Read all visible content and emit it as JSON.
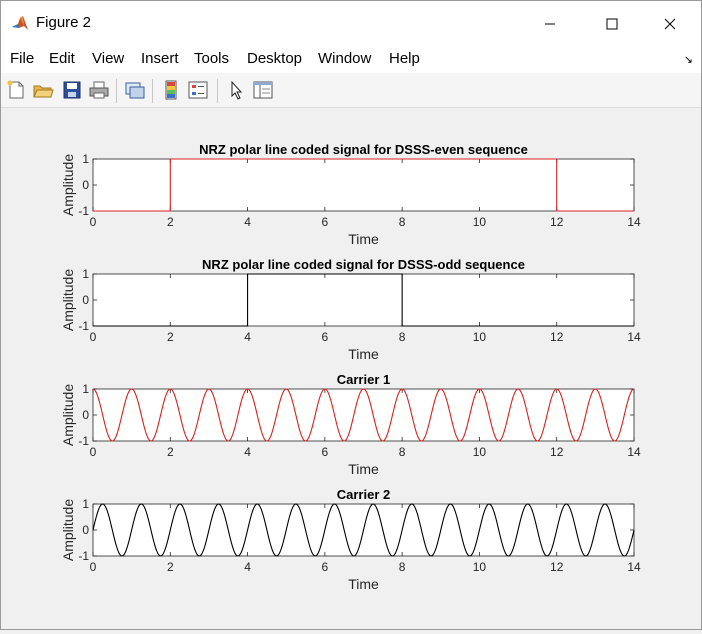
{
  "window": {
    "title": "Figure 2",
    "icon": "matlab-logo-icon"
  },
  "menu": [
    "File",
    "Edit",
    "View",
    "Insert",
    "Tools",
    "Desktop",
    "Window",
    "Help"
  ],
  "toolbar_icons": [
    "new-figure-icon",
    "open-file-icon",
    "save-icon",
    "print-icon",
    "link-plot-icon",
    "insert-colorbar-icon",
    "insert-legend-icon",
    "edit-plot-icon",
    "property-inspector-icon"
  ],
  "chart_data": [
    {
      "type": "line",
      "title": "NRZ polar line coded signal for DSSS-even sequence",
      "xlabel": "Time",
      "ylabel": "Amplitude",
      "xlim": [
        0,
        14
      ],
      "ylim": [
        -1,
        1
      ],
      "xticks": [
        "0",
        "2",
        "4",
        "6",
        "8",
        "10",
        "12",
        "14"
      ],
      "yticks": [
        "-1",
        "0",
        "1"
      ],
      "color": "#d92020",
      "x": [
        0,
        2,
        2,
        12,
        12,
        14
      ],
      "y": [
        -1,
        -1,
        1,
        1,
        -1,
        -1
      ]
    },
    {
      "type": "line",
      "title": "NRZ polar line coded signal for DSSS-odd sequence",
      "xlabel": "Time",
      "ylabel": "Amplitude",
      "xlim": [
        0,
        14
      ],
      "ylim": [
        -1,
        1
      ],
      "xticks": [
        "0",
        "2",
        "4",
        "6",
        "8",
        "10",
        "12",
        "14"
      ],
      "yticks": [
        "-1",
        "0",
        "1"
      ],
      "color": "#000000",
      "x": [
        0,
        4,
        4,
        8,
        8,
        14
      ],
      "y": [
        -1,
        -1,
        1,
        1,
        -1,
        -1
      ]
    },
    {
      "type": "line",
      "title": "Carrier 1",
      "xlabel": "Time",
      "ylabel": "Amplitude",
      "xlim": [
        0,
        14
      ],
      "ylim": [
        -1,
        1
      ],
      "xticks": [
        "0",
        "2",
        "4",
        "6",
        "8",
        "10",
        "12",
        "14"
      ],
      "yticks": [
        "-1",
        "0",
        "1"
      ],
      "color": "#d92020",
      "function": "cos",
      "frequency": 1,
      "amplitude": 1
    },
    {
      "type": "line",
      "title": "Carrier 2",
      "xlabel": "Time",
      "ylabel": "Amplitude",
      "xlim": [
        0,
        14
      ],
      "ylim": [
        -1,
        1
      ],
      "xticks": [
        "0",
        "2",
        "4",
        "6",
        "8",
        "10",
        "12",
        "14"
      ],
      "yticks": [
        "-1",
        "0",
        "1"
      ],
      "color": "#000000",
      "function": "sin",
      "frequency": 1,
      "amplitude": 1
    }
  ]
}
